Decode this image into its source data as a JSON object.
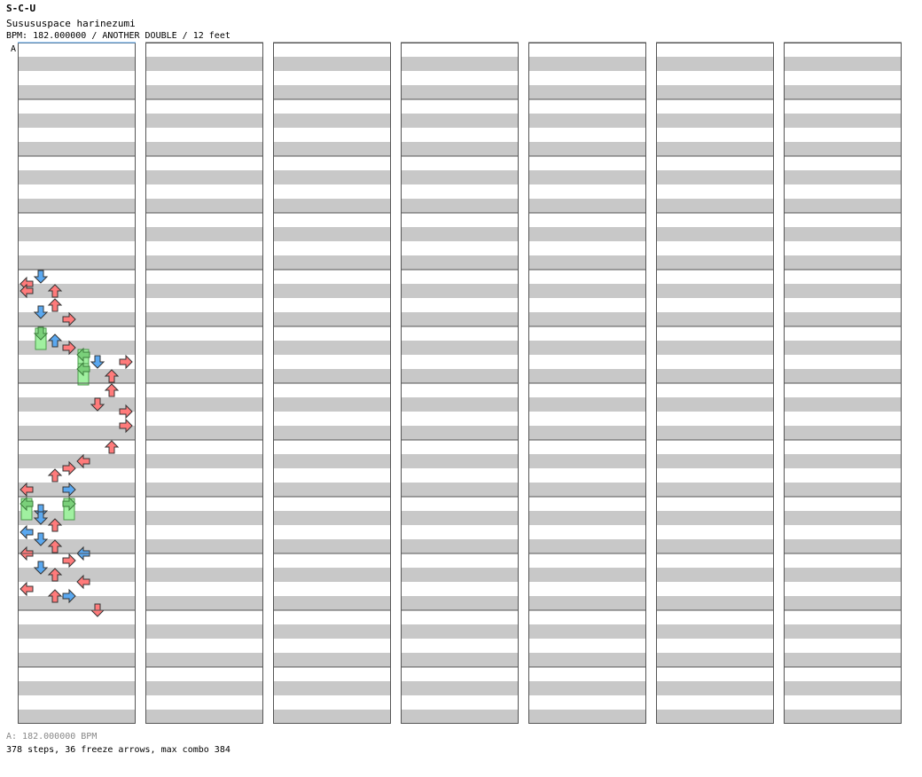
{
  "header": {
    "title": "S-C-U",
    "song": "Susususpace harinezumi",
    "info": "BPM: 182.000000 / ANOTHER DOUBLE / 12 feet"
  },
  "bpm_marker": "A",
  "footer": {
    "bpm_line": "A: 182.000000 BPM",
    "stats_line": "378 steps, 36 freeze arrows, max combo 384"
  },
  "colors": {
    "band_dark": "#c8c8c8",
    "band_light": "#ffffff",
    "measure_line": "#555555",
    "quarter": "#ff7b7b",
    "eighth": "#5aa8f0",
    "sixteenth": "#f08cf0",
    "freeze": "#a0f0a0",
    "bpm_line": "#5aa8f0"
  },
  "chart_data": {
    "type": "stepchart",
    "bpm": 182,
    "difficulty": "ANOTHER DOUBLE",
    "level": 12,
    "steps": 378,
    "freeze_arrows": 36,
    "max_combo": 384,
    "lanes": [
      "P1-left",
      "P1-down",
      "P1-up",
      "P1-right",
      "P2-left",
      "P2-down",
      "P2-up",
      "P2-right"
    ],
    "measures_per_column": 12,
    "columns": 7,
    "notes": [
      {
        "m": 4,
        "b": 0,
        "l": 1,
        "c": "e"
      },
      {
        "m": 4,
        "b": 0.5,
        "l": 0,
        "c": "q"
      },
      {
        "m": 4,
        "b": 1,
        "l": 0,
        "c": "q"
      },
      {
        "m": 4,
        "b": 1,
        "l": 2,
        "c": "q"
      },
      {
        "m": 4,
        "b": 2,
        "l": 2,
        "c": "q"
      },
      {
        "m": 4,
        "b": 2.5,
        "l": 1,
        "c": "e"
      },
      {
        "m": 4,
        "b": 3,
        "l": 3,
        "c": "q"
      },
      {
        "m": 5,
        "b": 0,
        "l": 1,
        "f": 1
      },
      {
        "m": 5,
        "b": 0.5,
        "l": 2,
        "c": "e"
      },
      {
        "m": 5,
        "b": 1,
        "l": 3,
        "c": "q"
      },
      {
        "m": 5,
        "b": 1.5,
        "l": 4,
        "f": 1
      },
      {
        "m": 5,
        "b": 2,
        "l": 5,
        "c": "e"
      },
      {
        "m": 5,
        "b": 2,
        "l": 7,
        "c": "q"
      },
      {
        "m": 5,
        "b": 2.5,
        "l": 4,
        "f": 1
      },
      {
        "m": 5,
        "b": 3,
        "l": 6,
        "c": "q"
      },
      {
        "m": 6,
        "b": 0,
        "l": 6,
        "c": "q"
      },
      {
        "m": 6,
        "b": 1,
        "l": 5,
        "c": "q"
      },
      {
        "m": 6,
        "b": 1.5,
        "l": 7,
        "c": "q"
      },
      {
        "m": 6,
        "b": 2.5,
        "l": 7,
        "c": "q"
      },
      {
        "m": 7,
        "b": 0,
        "l": 6,
        "c": "q"
      },
      {
        "m": 7,
        "b": 1,
        "l": 4,
        "c": "q"
      },
      {
        "m": 7,
        "b": 1.5,
        "l": 3,
        "c": "q"
      },
      {
        "m": 7,
        "b": 2,
        "l": 2,
        "c": "q"
      },
      {
        "m": 7,
        "b": 3,
        "l": 0,
        "c": "q"
      },
      {
        "m": 7,
        "b": 3,
        "l": 3,
        "c": "e"
      },
      {
        "m": 8,
        "b": 0,
        "l": 0,
        "f": 1
      },
      {
        "m": 8,
        "b": 0,
        "l": 3,
        "f": 1
      },
      {
        "m": 8,
        "b": 0.5,
        "l": 1,
        "c": "e"
      },
      {
        "m": 8,
        "b": 1,
        "l": 1,
        "c": "e"
      },
      {
        "m": 8,
        "b": 1.5,
        "l": 2,
        "c": "q"
      },
      {
        "m": 8,
        "b": 2,
        "l": 0,
        "c": "e"
      },
      {
        "m": 8,
        "b": 2.5,
        "l": 1,
        "c": "e"
      },
      {
        "m": 8,
        "b": 3,
        "l": 2,
        "c": "q"
      },
      {
        "m": 8,
        "b": 3.5,
        "l": 4,
        "c": "e"
      },
      {
        "m": 8,
        "b": 3.5,
        "l": 0,
        "c": "q"
      },
      {
        "m": 9,
        "b": 0,
        "l": 3,
        "c": "q"
      },
      {
        "m": 9,
        "b": 0.5,
        "l": 1,
        "c": "e"
      },
      {
        "m": 9,
        "b": 1,
        "l": 2,
        "c": "q"
      },
      {
        "m": 9,
        "b": 1.5,
        "l": 4,
        "c": "q"
      },
      {
        "m": 9,
        "b": 2,
        "l": 0,
        "c": "q"
      },
      {
        "m": 9,
        "b": 2.5,
        "l": 2,
        "c": "q"
      },
      {
        "m": 9,
        "b": 2.5,
        "l": 3,
        "c": "e"
      },
      {
        "m": 9,
        "b": 3.5,
        "l": 5,
        "c": "q"
      }
    ]
  }
}
